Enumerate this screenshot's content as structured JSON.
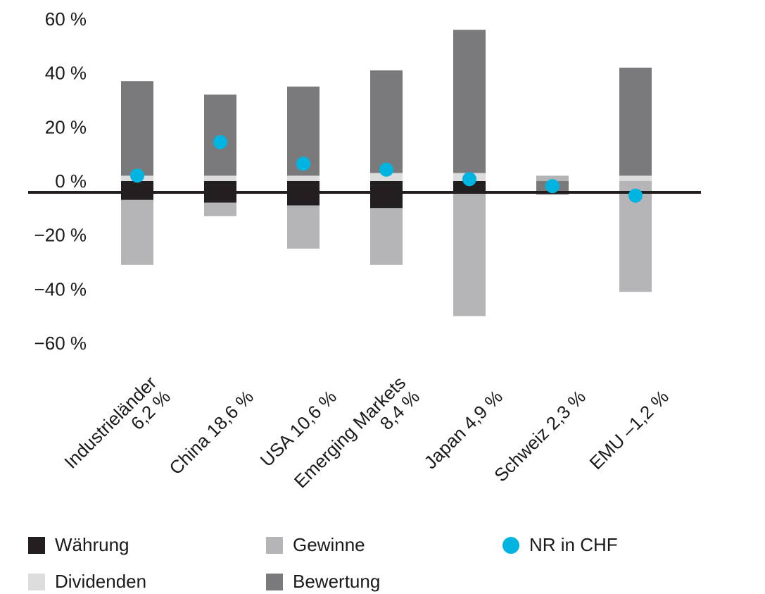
{
  "chart_data": {
    "type": "bar",
    "stacked": true,
    "title": "",
    "xlabel": "",
    "ylabel": "",
    "ylim": [
      -60,
      60
    ],
    "yticks": [
      60,
      40,
      20,
      0,
      -20,
      -40,
      -60
    ],
    "ytick_labels": [
      "60 %",
      "40 %",
      "20 %",
      "0 %",
      "−20 %",
      "−40 %",
      "−60 %"
    ],
    "categories": [
      [
        "Industrieländer",
        "6,2 %"
      ],
      [
        "China 18,6 %"
      ],
      [
        "USA 10,6 %"
      ],
      [
        "Emerging Markets",
        "8,4 %"
      ],
      [
        "Japan 4,9 %"
      ],
      [
        "Schweiz 2,3 %"
      ],
      [
        "EMU –1,2 %"
      ]
    ],
    "series": [
      {
        "name": "Währung",
        "color": "#231f20",
        "values": [
          -7,
          -8,
          -9,
          -10,
          -4,
          0,
          0
        ]
      },
      {
        "name": "Gewinne",
        "color": "#b5b5b7",
        "values": [
          -24,
          -5,
          -16,
          -21,
          -46,
          2,
          -41
        ]
      },
      {
        "name": "Dividenden",
        "color": "#dcdcdd",
        "values": [
          2,
          2,
          2,
          3,
          3,
          0,
          2
        ]
      },
      {
        "name": "Bewertung",
        "color": "#7a7a7c",
        "values": [
          35,
          30,
          33,
          38,
          53,
          -5,
          40
        ]
      }
    ],
    "nr_series": {
      "name": "NR in CHF",
      "color": "#00b4e1",
      "values": [
        6.2,
        18.6,
        10.6,
        8.4,
        4.9,
        2.3,
        -1.2
      ]
    },
    "legend_position": "bottom",
    "grid": false
  }
}
